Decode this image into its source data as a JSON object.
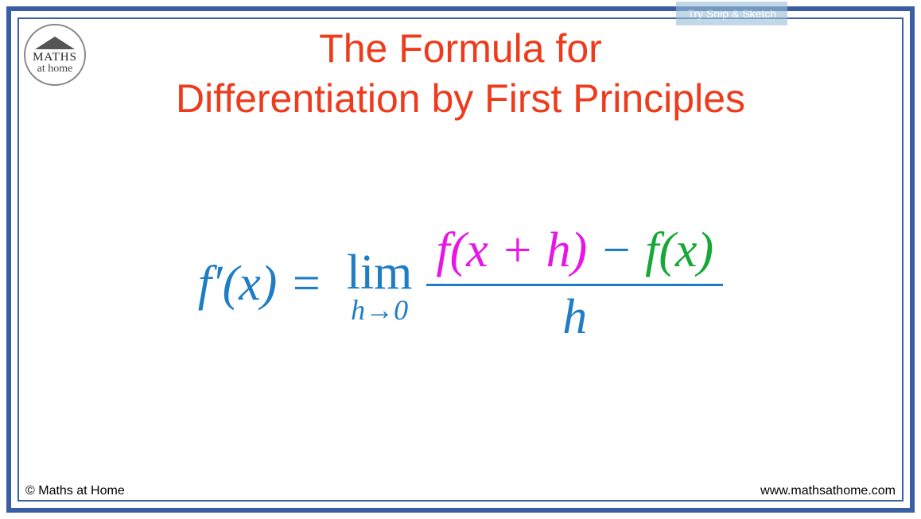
{
  "colors": {
    "frame": "#3a5ea3",
    "title": "#ed3b1c",
    "formula_blue": "#1f7dc4",
    "formula_magenta": "#e815e8",
    "formula_green": "#17a837",
    "snip_bg": "#9bbfd6",
    "snip_text": "#ffffff",
    "text_black": "#000000"
  },
  "logo": {
    "text_top": "MATHS",
    "text_prefix": "at ",
    "text_bottom": "home"
  },
  "title": {
    "line1": "The Formula for",
    "line2": "Differentiation by First Principles"
  },
  "snip_button": "Try Snip & Sketch",
  "formula": {
    "lhs": "f′(x)  =",
    "lim": "lim",
    "lim_sub": "h→0",
    "num_fxh": "f(x + h)",
    "num_minus": " − ",
    "num_fx": "f(x)",
    "denom": "h"
  },
  "footer": {
    "copyright": "© Maths at Home",
    "website": "www.mathsathome.com"
  }
}
